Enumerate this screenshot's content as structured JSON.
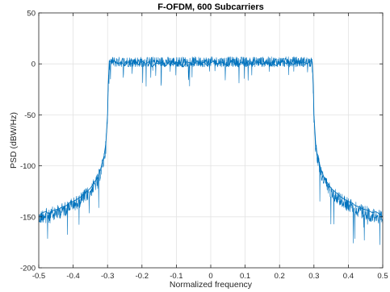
{
  "chart_data": {
    "type": "line",
    "title": "F-OFDM, 600 Subcarriers",
    "xlabel": "Normalized frequency",
    "ylabel": "PSD (dBW/Hz)",
    "xlim": [
      -0.5,
      0.5
    ],
    "ylim": [
      -200,
      50
    ],
    "xticks": [
      -0.5,
      -0.4,
      -0.3,
      -0.2,
      -0.1,
      0,
      0.1,
      0.2,
      0.3,
      0.4,
      0.5
    ],
    "xtick_labels": [
      "-0.5",
      "-0.4",
      "-0.3",
      "-0.2",
      "-0.1",
      "0",
      "0.1",
      "0.2",
      "0.3",
      "0.4",
      "0.5"
    ],
    "yticks": [
      -200,
      -150,
      -100,
      -50,
      0,
      50
    ],
    "ytick_labels": [
      "-200",
      "-150",
      "-100",
      "-50",
      "0",
      "50"
    ],
    "grid": true,
    "legend": "none",
    "line_color": "#0072bd",
    "series": [
      {
        "x": [
          -0.5,
          -0.49,
          -0.48,
          -0.47,
          -0.46,
          -0.45,
          -0.44,
          -0.43,
          -0.42,
          -0.41,
          -0.4,
          -0.39,
          -0.38,
          -0.37,
          -0.36,
          -0.35,
          -0.34,
          -0.33,
          -0.32,
          -0.31,
          -0.305,
          -0.3,
          -0.298,
          -0.295,
          -0.29,
          -0.28,
          -0.27,
          -0.26,
          -0.25,
          -0.24,
          -0.23,
          -0.22,
          -0.21,
          -0.2,
          -0.19,
          -0.18,
          -0.17,
          -0.16,
          -0.15,
          -0.14,
          -0.13,
          -0.12,
          -0.11,
          -0.1,
          -0.09,
          -0.08,
          -0.07,
          -0.06,
          -0.05,
          -0.04,
          -0.03,
          -0.02,
          -0.01,
          0,
          0.01,
          0.02,
          0.03,
          0.04,
          0.05,
          0.06,
          0.07,
          0.08,
          0.09,
          0.1,
          0.11,
          0.12,
          0.13,
          0.14,
          0.15,
          0.16,
          0.17,
          0.18,
          0.19,
          0.2,
          0.21,
          0.22,
          0.23,
          0.24,
          0.25,
          0.26,
          0.27,
          0.28,
          0.29,
          0.295,
          0.298,
          0.3,
          0.305,
          0.31,
          0.32,
          0.33,
          0.34,
          0.35,
          0.36,
          0.37,
          0.38,
          0.39,
          0.4,
          0.41,
          0.42,
          0.43,
          0.44,
          0.45,
          0.46,
          0.47,
          0.48,
          0.49,
          0.5
        ],
        "y": [
          -150,
          -146,
          -145,
          -147,
          -144,
          -143,
          -142,
          -140,
          -139,
          -136,
          -135,
          -133,
          -131,
          -128,
          -125,
          -122,
          -117,
          -112,
          -103,
          -90,
          -78,
          -50,
          -20,
          3,
          2,
          3,
          0,
          2,
          -2,
          2,
          0,
          4,
          -1,
          3,
          0,
          2,
          -3,
          1,
          0,
          2,
          -2,
          3,
          -1,
          2,
          0,
          -3,
          2,
          1,
          -1,
          3,
          0,
          2,
          -2,
          1,
          3,
          -1,
          2,
          0,
          -2,
          3,
          1,
          -1,
          2,
          0,
          3,
          -2,
          1,
          2,
          -1,
          3,
          0,
          2,
          -2,
          1,
          3,
          0,
          2,
          -1,
          3,
          1,
          2,
          0,
          3,
          2,
          -20,
          -50,
          -78,
          -90,
          -103,
          -112,
          -117,
          -122,
          -125,
          -128,
          -131,
          -133,
          -135,
          -136,
          -139,
          -140,
          -142,
          -143,
          -144,
          -146,
          -145,
          -147,
          -150
        ]
      }
    ]
  }
}
